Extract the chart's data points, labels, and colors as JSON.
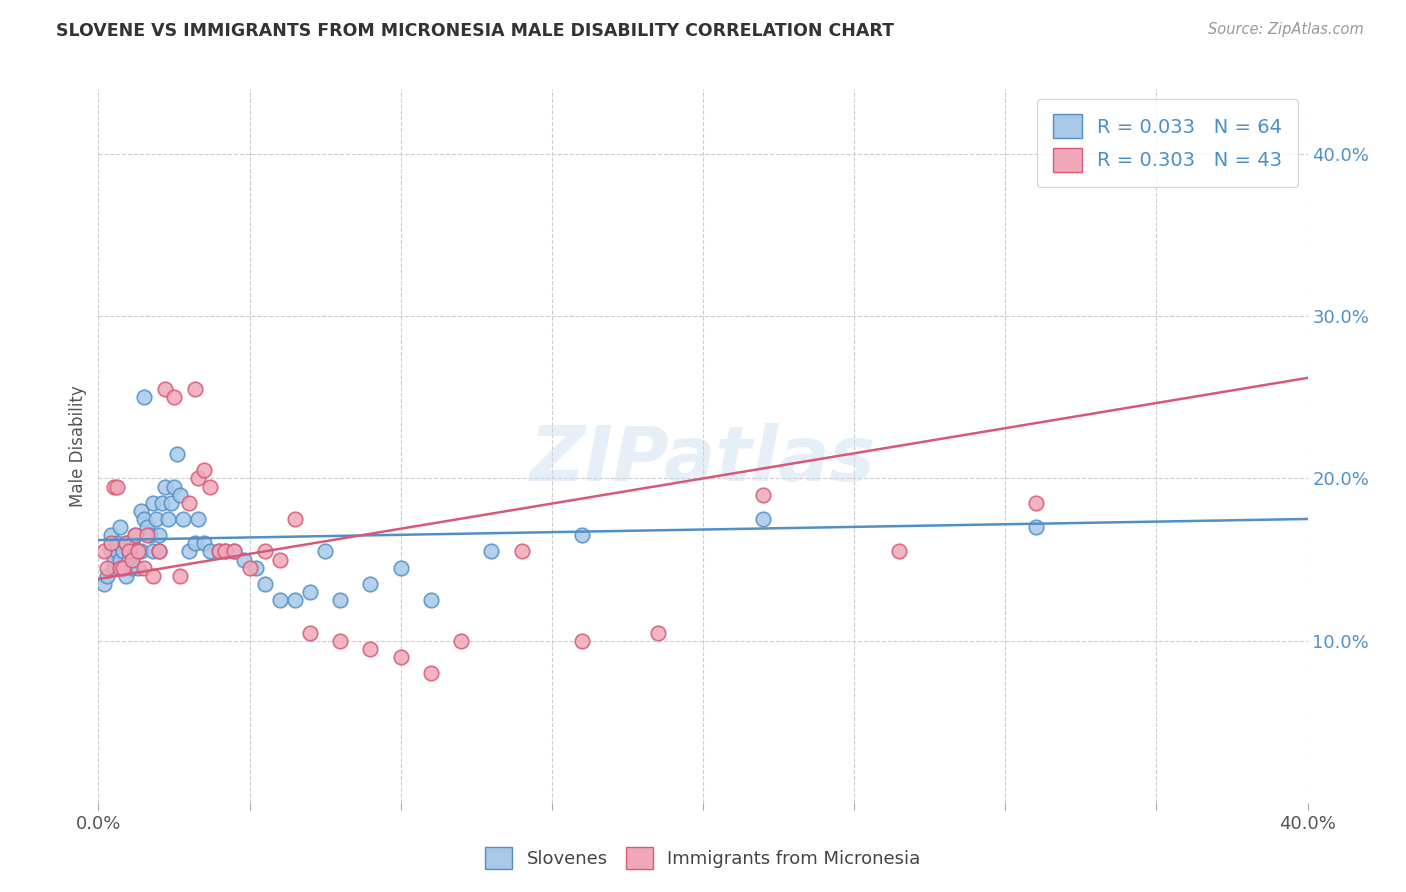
{
  "title": "SLOVENE VS IMMIGRANTS FROM MICRONESIA MALE DISABILITY CORRELATION CHART",
  "source": "Source: ZipAtlas.com",
  "ylabel": "Male Disability",
  "xlim": [
    0.0,
    0.4
  ],
  "ylim": [
    0.0,
    0.44
  ],
  "xtick_labeled": [
    0.0,
    0.4
  ],
  "xtick_minor": [
    0.05,
    0.1,
    0.15,
    0.2,
    0.25,
    0.3,
    0.35
  ],
  "yticks_right": [
    0.1,
    0.2,
    0.3,
    0.4
  ],
  "legend_label1": "R = 0.033   N = 64",
  "legend_label2": "R = 0.303   N = 43",
  "legend_bottom_label1": "Slovenes",
  "legend_bottom_label2": "Immigrants from Micronesia",
  "color_blue": "#a8c8e8",
  "color_pink": "#f0a8b8",
  "color_line_blue": "#5090c8",
  "color_line_pink": "#d85878",
  "watermark": "ZIPatlas",
  "blue_scatter_x": [
    0.002,
    0.003,
    0.004,
    0.004,
    0.005,
    0.005,
    0.006,
    0.006,
    0.007,
    0.007,
    0.008,
    0.008,
    0.009,
    0.009,
    0.01,
    0.01,
    0.011,
    0.011,
    0.012,
    0.012,
    0.013,
    0.013,
    0.014,
    0.014,
    0.015,
    0.015,
    0.016,
    0.017,
    0.018,
    0.018,
    0.019,
    0.02,
    0.02,
    0.021,
    0.022,
    0.023,
    0.024,
    0.025,
    0.026,
    0.027,
    0.028,
    0.03,
    0.032,
    0.033,
    0.035,
    0.037,
    0.04,
    0.042,
    0.045,
    0.048,
    0.052,
    0.055,
    0.06,
    0.065,
    0.07,
    0.075,
    0.08,
    0.09,
    0.1,
    0.11,
    0.13,
    0.16,
    0.22,
    0.31
  ],
  "blue_scatter_y": [
    0.135,
    0.14,
    0.155,
    0.165,
    0.145,
    0.15,
    0.155,
    0.16,
    0.17,
    0.15,
    0.145,
    0.155,
    0.14,
    0.16,
    0.15,
    0.155,
    0.145,
    0.16,
    0.155,
    0.165,
    0.145,
    0.155,
    0.155,
    0.18,
    0.175,
    0.25,
    0.17,
    0.165,
    0.155,
    0.185,
    0.175,
    0.155,
    0.165,
    0.185,
    0.195,
    0.175,
    0.185,
    0.195,
    0.215,
    0.19,
    0.175,
    0.155,
    0.16,
    0.175,
    0.16,
    0.155,
    0.155,
    0.155,
    0.155,
    0.15,
    0.145,
    0.135,
    0.125,
    0.125,
    0.13,
    0.155,
    0.125,
    0.135,
    0.145,
    0.125,
    0.155,
    0.165,
    0.175,
    0.17
  ],
  "pink_scatter_x": [
    0.002,
    0.003,
    0.004,
    0.005,
    0.006,
    0.007,
    0.008,
    0.009,
    0.01,
    0.011,
    0.012,
    0.013,
    0.015,
    0.016,
    0.018,
    0.02,
    0.022,
    0.025,
    0.027,
    0.03,
    0.032,
    0.033,
    0.035,
    0.037,
    0.04,
    0.042,
    0.045,
    0.05,
    0.055,
    0.06,
    0.065,
    0.07,
    0.08,
    0.09,
    0.1,
    0.11,
    0.12,
    0.14,
    0.16,
    0.185,
    0.22,
    0.265,
    0.31
  ],
  "pink_scatter_y": [
    0.155,
    0.145,
    0.16,
    0.195,
    0.195,
    0.145,
    0.145,
    0.16,
    0.155,
    0.15,
    0.165,
    0.155,
    0.145,
    0.165,
    0.14,
    0.155,
    0.255,
    0.25,
    0.14,
    0.185,
    0.255,
    0.2,
    0.205,
    0.195,
    0.155,
    0.155,
    0.155,
    0.145,
    0.155,
    0.15,
    0.175,
    0.105,
    0.1,
    0.095,
    0.09,
    0.08,
    0.1,
    0.155,
    0.1,
    0.105,
    0.19,
    0.155,
    0.185
  ],
  "blue_line_x": [
    0.0,
    0.4
  ],
  "blue_line_y": [
    0.162,
    0.175
  ],
  "pink_line_x": [
    0.0,
    0.4
  ],
  "pink_line_y": [
    0.138,
    0.262
  ],
  "background_color": "#ffffff",
  "grid_color": "#cccccc"
}
